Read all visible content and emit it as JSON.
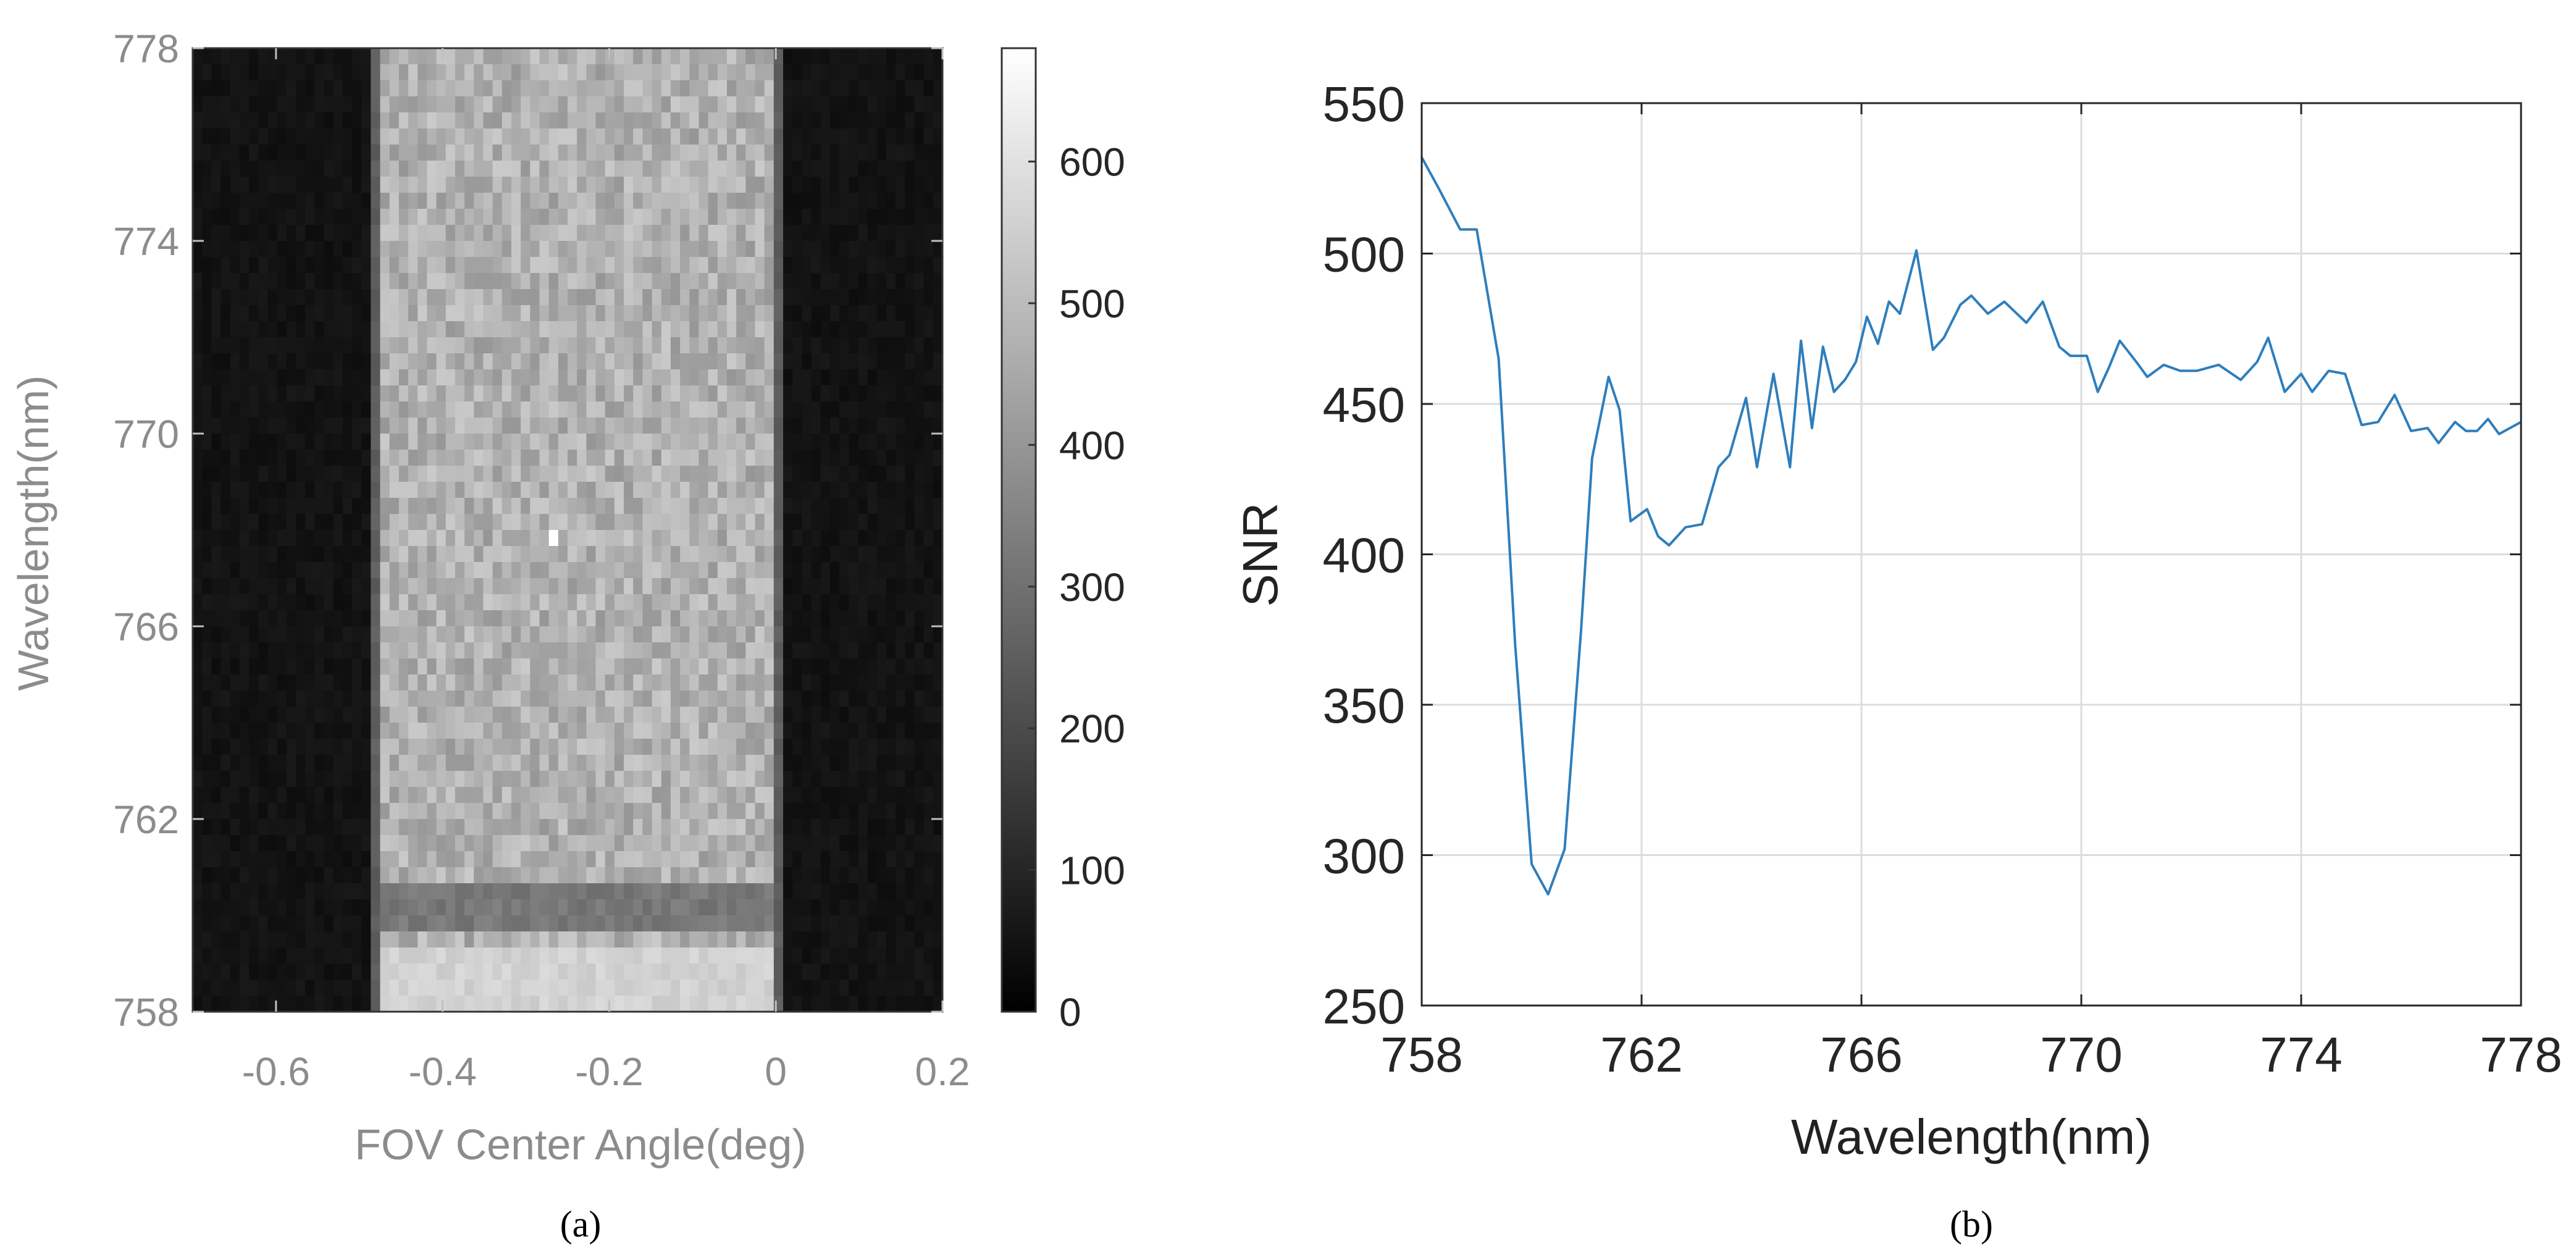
{
  "chart_data": [
    {
      "type": "heatmap",
      "panel_label": "(a)",
      "xlabel": "FOV Center Angle(deg)",
      "ylabel": "Wavelength(nm)",
      "xlim": [
        -0.7,
        0.2
      ],
      "ylim": [
        758,
        778
      ],
      "xticks": [
        -0.6,
        -0.4,
        -0.2,
        0,
        0.2
      ],
      "xtick_labels": [
        "-0.6",
        "-0.4",
        "-0.2",
        "0",
        "0.2"
      ],
      "yticks": [
        758,
        762,
        766,
        770,
        774,
        778
      ],
      "ytick_labels": [
        "758",
        "762",
        "766",
        "770",
        "774",
        "778"
      ],
      "colorbar": {
        "range": [
          0,
          680
        ],
        "ticks": [
          0,
          100,
          200,
          300,
          400,
          500,
          600
        ],
        "tick_labels": [
          "0",
          "100",
          "200",
          "300",
          "400",
          "500",
          "600"
        ],
        "colormap": "gray"
      },
      "field": {
        "grid": {
          "x_cells": 80,
          "y_cells": 60
        },
        "bright_band_deg": [
          -0.48,
          0.0
        ],
        "band_edge_deg": [
          -0.49,
          0.01
        ],
        "dark_value": 50,
        "band_edge_value": 250,
        "band_mean_value": 470,
        "noise_amplitude": 70,
        "dark_band_nm": [
          759.6,
          760.7
        ],
        "dark_band_value": 320,
        "low_bright_nm": [
          758.0,
          759.3
        ],
        "low_bright_value": 560,
        "hot_pixel": {
          "x_deg": -0.27,
          "y_nm": 767.8,
          "value": 680
        }
      }
    },
    {
      "type": "line",
      "panel_label": "(b)",
      "xlabel": "Wavelength(nm)",
      "ylabel": "SNR",
      "xlim": [
        758,
        778
      ],
      "ylim": [
        250,
        550
      ],
      "grid": true,
      "xticks": [
        758,
        762,
        766,
        770,
        774,
        778
      ],
      "xtick_labels": [
        "758",
        "762",
        "766",
        "770",
        "774",
        "778"
      ],
      "yticks": [
        250,
        300,
        350,
        400,
        450,
        500,
        550
      ],
      "ytick_labels": [
        "250",
        "300",
        "350",
        "400",
        "450",
        "500",
        "550"
      ],
      "line_color": "#2e7ebc",
      "series": [
        {
          "name": "SNR",
          "x": [
            758.0,
            758.3,
            758.7,
            759.0,
            759.4,
            759.7,
            760.0,
            760.3,
            760.6,
            760.9,
            761.1,
            761.4,
            761.6,
            761.8,
            762.1,
            762.3,
            762.5,
            762.8,
            763.1,
            763.4,
            763.6,
            763.9,
            764.1,
            764.4,
            764.7,
            764.9,
            765.1,
            765.3,
            765.5,
            765.7,
            765.9,
            766.1,
            766.3,
            766.5,
            766.7,
            767.0,
            767.3,
            767.5,
            767.8,
            768.0,
            768.3,
            768.6,
            769.0,
            769.3,
            769.6,
            769.8,
            770.1,
            770.3,
            770.5,
            770.7,
            771.0,
            771.2,
            771.5,
            771.8,
            772.1,
            772.5,
            772.9,
            773.2,
            773.4,
            773.7,
            774.0,
            774.2,
            774.5,
            774.8,
            775.1,
            775.4,
            775.7,
            776.0,
            776.3,
            776.5,
            776.8,
            777.0,
            777.2,
            777.4,
            777.6,
            778.0
          ],
          "values": [
            532,
            522,
            508,
            508,
            465,
            370,
            297,
            287,
            302,
            375,
            432,
            459,
            448,
            411,
            415,
            406,
            403,
            409,
            410,
            429,
            433,
            452,
            429,
            460,
            429,
            471,
            442,
            469,
            454,
            458,
            464,
            479,
            470,
            484,
            480,
            501,
            468,
            472,
            483,
            486,
            480,
            484,
            477,
            484,
            469,
            466,
            466,
            454,
            462,
            471,
            464,
            459,
            463,
            461,
            461,
            463,
            458,
            464,
            472,
            454,
            460,
            454,
            461,
            460,
            443,
            444,
            453,
            441,
            442,
            437,
            444,
            441,
            441,
            445,
            440,
            444
          ]
        }
      ]
    }
  ]
}
